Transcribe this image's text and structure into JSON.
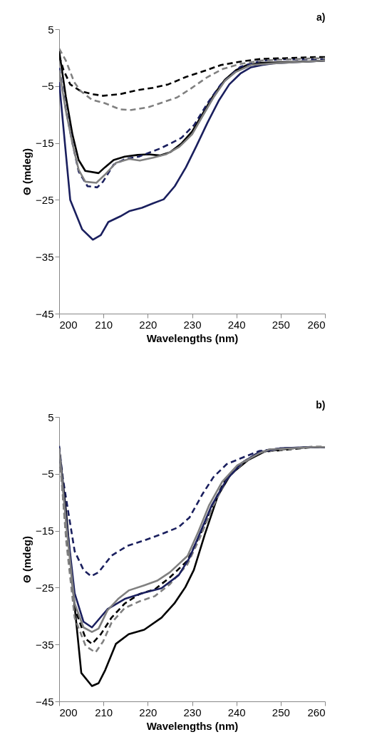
{
  "chart_data": [
    {
      "type": "line",
      "title": "a)",
      "xlabel": "Wavelengths (nm)",
      "ylabel": "Θ (mdeg)",
      "xlim": [
        200,
        260
      ],
      "xticks": [
        200,
        210,
        220,
        230,
        240,
        250,
        260
      ],
      "ylim": [
        -45,
        5
      ],
      "yticks": [
        5,
        -5,
        -15,
        -25,
        -35,
        -45
      ],
      "grid": false,
      "legend": false,
      "series": [
        {
          "color": "#1a1f5e",
          "line_style": "solid",
          "x": [
            200,
            202.5,
            205.2,
            207.6,
            209.4,
            211.1,
            213.8,
            215.8,
            218.7,
            221.2,
            223.6,
            226.1,
            228.6,
            231,
            233.5,
            236,
            238.4,
            240.9,
            243.3,
            245.8,
            248.3,
            253.2,
            258.1,
            260
          ],
          "values": [
            -4.3,
            -25,
            -30.2,
            -32,
            -31.2,
            -28.9,
            -27.9,
            -27,
            -26.4,
            -25.6,
            -24.9,
            -22.6,
            -19.3,
            -15.5,
            -11.4,
            -7.6,
            -4.7,
            -2.8,
            -1.7,
            -1.3,
            -1,
            -0.8,
            -0.6,
            -0.5
          ]
        },
        {
          "color": "#000000",
          "line_style": "solid",
          "x": [
            200,
            201.5,
            203,
            204.4,
            205.9,
            208.9,
            210.3,
            212.3,
            214.8,
            217.7,
            220.2,
            222.7,
            225.1,
            227.6,
            230,
            232.5,
            235,
            237.4,
            239.9,
            242.4,
            245.8,
            250.7,
            258,
            260
          ],
          "values": [
            1.2,
            -6.8,
            -13.5,
            -18,
            -19.9,
            -20.3,
            -19.3,
            -18,
            -17.4,
            -17.1,
            -17,
            -17.2,
            -16.6,
            -15.1,
            -13,
            -9.7,
            -6.4,
            -3.9,
            -2.2,
            -1.3,
            -0.9,
            -0.8,
            -0.6,
            -0.5
          ]
        },
        {
          "color": "#1a1f5e",
          "line_style": "dashed",
          "x": [
            200,
            201.5,
            203,
            204.4,
            206.4,
            208.6,
            209.9,
            212.3,
            215,
            218,
            220,
            222.7,
            225.1,
            227.6,
            230.5,
            233.5,
            236.5,
            240.9,
            245.8,
            250.7,
            258,
            260
          ],
          "values": [
            -1.8,
            -9,
            -15,
            -20,
            -22.6,
            -22.8,
            -21.8,
            -18.8,
            -17.8,
            -17.4,
            -16.8,
            -16,
            -15.1,
            -14.1,
            -11.8,
            -8,
            -4.7,
            -1.6,
            -0.5,
            -0.3,
            -0.3,
            -0.3
          ]
        },
        {
          "color": "#808080",
          "line_style": "solid",
          "x": [
            200,
            201.5,
            203,
            204.4,
            205.9,
            208.4,
            210.3,
            212.8,
            215.8,
            218.2,
            221.2,
            224.1,
            227.1,
            230,
            232.5,
            235,
            237.4,
            239.9,
            243.3,
            248.3,
            258,
            260
          ],
          "values": [
            -2.2,
            -9.3,
            -15.1,
            -19.7,
            -21.8,
            -22,
            -20.6,
            -18.5,
            -17.8,
            -18.1,
            -17.6,
            -17,
            -15.7,
            -13.5,
            -10.1,
            -6.8,
            -4.1,
            -2.5,
            -1.3,
            -1,
            -0.6,
            -0.5
          ]
        },
        {
          "color": "#000000",
          "line_style": "dashed",
          "x": [
            200,
            201,
            202.5,
            204.9,
            207.4,
            209.9,
            213.8,
            217.7,
            221.2,
            224.6,
            228.6,
            232.5,
            236.5,
            240.9,
            245.8,
            250.7,
            258,
            260
          ],
          "values": [
            0.3,
            -2.2,
            -4.7,
            -5.9,
            -6.4,
            -6.7,
            -6.4,
            -5.7,
            -5.3,
            -4.7,
            -3.4,
            -2.4,
            -1.3,
            -0.7,
            -0.2,
            -0.1,
            0.1,
            0.1
          ]
        },
        {
          "color": "#808080",
          "line_style": "dashed",
          "x": [
            200,
            201.5,
            203.4,
            204.9,
            207.4,
            210.3,
            213.8,
            216.3,
            220.2,
            223.6,
            226.6,
            229.6,
            233.5,
            236.9,
            240.9,
            245.8,
            258,
            260
          ],
          "values": [
            1.6,
            -0.5,
            -4.3,
            -5.9,
            -7.4,
            -8,
            -9.1,
            -9.2,
            -8.7,
            -7.8,
            -7,
            -5.5,
            -3.4,
            -2,
            -1.1,
            -0.5,
            -0.1,
            -0.1
          ]
        }
      ]
    },
    {
      "type": "line",
      "title": "b)",
      "xlabel": "Wavelengths (nm)",
      "ylabel": "Θ (mdeg)",
      "xlim": [
        200,
        260
      ],
      "xticks": [
        200,
        210,
        220,
        230,
        240,
        250,
        260
      ],
      "ylim": [
        -45,
        5
      ],
      "yticks": [
        5,
        -5,
        -15,
        -25,
        -35,
        -45
      ],
      "grid": false,
      "legend": false,
      "series": [
        {
          "color": "#1a1f5e",
          "line_style": "dashed",
          "x": [
            200,
            200.8,
            202.1,
            203.5,
            205.5,
            207.2,
            208.9,
            211.8,
            215.3,
            219.2,
            223.1,
            226.9,
            229.4,
            232.4,
            234.8,
            237.8,
            241.2,
            245.1,
            250,
            257.3,
            260
          ],
          "values": [
            -0.1,
            -5.6,
            -11.9,
            -18.6,
            -21.9,
            -23,
            -22.3,
            -19.4,
            -17.7,
            -16.7,
            -15.6,
            -14.4,
            -12.7,
            -8.5,
            -5.6,
            -3.3,
            -2.2,
            -1,
            -0.5,
            -0.3,
            -0.3
          ]
        },
        {
          "color": "#000000",
          "line_style": "solid",
          "x": [
            200,
            201.6,
            203,
            205,
            207.4,
            208.9,
            210.4,
            212.8,
            215.7,
            219.2,
            223.1,
            226,
            228.5,
            230.4,
            232.9,
            235.8,
            238.7,
            242.6,
            246.6,
            252.4,
            257.3,
            260
          ],
          "values": [
            -0.5,
            -11.9,
            -24.4,
            -40,
            -42.3,
            -41.8,
            -39.5,
            -34.9,
            -33.2,
            -32.4,
            -30.3,
            -27.8,
            -24.9,
            -21.9,
            -15.6,
            -8.9,
            -5.1,
            -2.6,
            -1,
            -0.5,
            -0.3,
            -0.3
          ]
        },
        {
          "color": "#000000",
          "line_style": "dashed",
          "x": [
            200,
            201.6,
            203.5,
            206,
            207.4,
            209.4,
            211.8,
            214.8,
            218.2,
            221.6,
            225,
            228.9,
            231.9,
            234.8,
            237.8,
            241.2,
            245.1,
            257.3,
            260
          ],
          "values": [
            -0.5,
            -16,
            -28.6,
            -34,
            -34.9,
            -33.2,
            -30.3,
            -27.8,
            -26.1,
            -25.3,
            -23.2,
            -20.3,
            -15.6,
            -10.2,
            -5.6,
            -3.1,
            -1.2,
            -0.3,
            -0.3
          ]
        },
        {
          "color": "#808080",
          "line_style": "dashed",
          "x": [
            200,
            201.6,
            203.5,
            206,
            208.2,
            209.9,
            211.8,
            214.8,
            218.2,
            221.6,
            225,
            228.9,
            231.9,
            234.8,
            237.8,
            241.2,
            245.1,
            257.3,
            260
          ],
          "values": [
            -0.5,
            -16.9,
            -30.3,
            -35.3,
            -36.4,
            -34.5,
            -31.2,
            -28.6,
            -27.4,
            -26.5,
            -24.4,
            -21,
            -16,
            -10.6,
            -6,
            -3.3,
            -1.2,
            -0.2,
            -0.2
          ]
        },
        {
          "color": "#1a1f5e",
          "line_style": "solid",
          "x": [
            200,
            201.6,
            203.5,
            205.5,
            207.4,
            210.9,
            214.8,
            219.2,
            223.1,
            227,
            229.4,
            231.9,
            234.4,
            237.8,
            241.2,
            245.1,
            250,
            257.3,
            260
          ],
          "values": [
            -0.5,
            -13,
            -26,
            -31,
            -32,
            -28.8,
            -27,
            -25.9,
            -25.1,
            -22.8,
            -19.8,
            -15.2,
            -10.6,
            -6,
            -3.1,
            -1.2,
            -0.5,
            -0.3,
            -0.3
          ]
        },
        {
          "color": "#808080",
          "line_style": "solid",
          "x": [
            200,
            201.6,
            203.5,
            205.5,
            207.4,
            208.9,
            210.9,
            213.3,
            215.7,
            219.2,
            222.1,
            225,
            229,
            231.4,
            233.8,
            236.8,
            240.2,
            245.1,
            247.5,
            257.3,
            260
          ],
          "values": [
            -0.5,
            -14,
            -27.8,
            -32,
            -32.8,
            -32.2,
            -29,
            -27,
            -25.5,
            -24.6,
            -23.8,
            -22.3,
            -19.4,
            -15.2,
            -10.6,
            -6.4,
            -3.5,
            -1.4,
            -0.7,
            -0.3,
            -0.3
          ]
        }
      ]
    }
  ]
}
